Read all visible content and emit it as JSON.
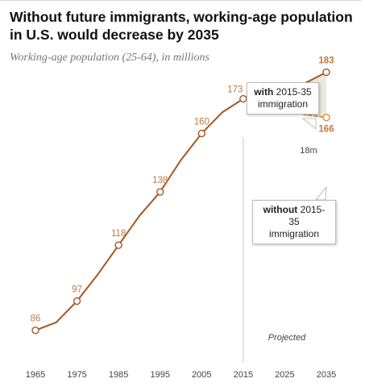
{
  "title": "Without future immigrants, working-age population in U.S. would decrease by 2035",
  "subtitle": "Working-age population (25-64), in millions",
  "chart_data": {
    "type": "line",
    "ylim": [
      75,
      195
    ],
    "xlim": [
      1965,
      2035
    ],
    "x_ticks": [
      1965,
      1975,
      1985,
      1995,
      2005,
      2015,
      2025,
      2035
    ],
    "projection_start": 2015,
    "projected_label": "Projected",
    "series": [
      {
        "key": "historical",
        "color": "#a65523",
        "x": [
          1965,
          1970,
          1975,
          1980,
          1985,
          1990,
          1995,
          2000,
          2005,
          2010,
          2015
        ],
        "y": [
          86,
          89,
          97,
          107,
          118,
          129,
          138,
          150,
          160,
          168,
          173
        ]
      },
      {
        "key": "with",
        "color": "#a65523",
        "x": [
          2015,
          2020,
          2025,
          2030,
          2035
        ],
        "y": [
          173,
          177,
          178,
          179,
          183
        ]
      },
      {
        "key": "without",
        "color": "#d98c4a",
        "dashed": true,
        "x": [
          2015,
          2020,
          2025,
          2030,
          2035
        ],
        "y": [
          173,
          172,
          170,
          167,
          166
        ]
      }
    ],
    "point_labels": [
      {
        "x": 1965,
        "y": 86,
        "text": "86",
        "bold": false
      },
      {
        "x": 1975,
        "y": 97,
        "text": "97",
        "bold": false
      },
      {
        "x": 1985,
        "y": 118,
        "text": "118",
        "bold": false
      },
      {
        "x": 1995,
        "y": 138,
        "text": "138",
        "bold": false
      },
      {
        "x": 2005,
        "y": 160,
        "text": "160",
        "bold": false
      },
      {
        "x": 2015,
        "y": 173,
        "text": "173",
        "bold": false
      },
      {
        "x": 2035,
        "y": 183,
        "text": "183",
        "bold": true
      },
      {
        "x": 2035,
        "y": 166,
        "text": "166",
        "bold": true
      }
    ],
    "gap_label": "18m",
    "callouts": {
      "with": {
        "bold": "with",
        "rest": "2015-35",
        "line2": "immigration"
      },
      "without": {
        "bold": "without",
        "rest": "2015-35",
        "line2": "immigration"
      }
    },
    "colors": {
      "line": "#a65523",
      "dashed": "#d98c4a",
      "label": "#c27a3e",
      "dark_label": "#a65523",
      "gap_fill": "#ece8dc",
      "divider": "#c8c8c8"
    }
  }
}
